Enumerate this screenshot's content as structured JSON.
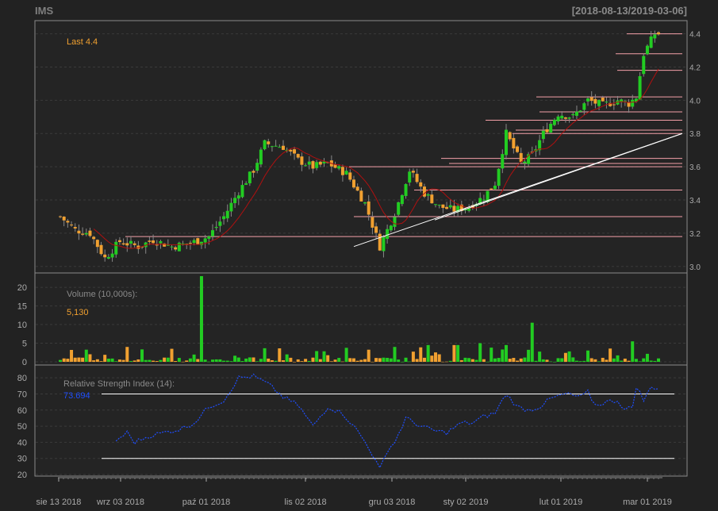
{
  "header": {
    "symbol": "IMS",
    "date_range": "[2018-08-13/2019-03-06]"
  },
  "colors": {
    "background": "#222222",
    "frame": "#8a8a8a",
    "grid": "#3a3a3a",
    "up": "#22cc22",
    "down": "#f0a030",
    "sma": "#b01010",
    "resistance": "#f4a0a8",
    "trendline": "#ffffff",
    "rsi": "#1f4fff",
    "text": "#aaaaaa"
  },
  "price_panel": {
    "last_label": "Last 4.4",
    "y_ticks": [
      "3.0",
      "3.2",
      "3.4",
      "3.6",
      "3.8",
      "4.0",
      "4.2",
      "4.4"
    ]
  },
  "volume_panel": {
    "label": "Volume (10,000s):",
    "last_value": "5,130",
    "y_ticks": [
      "0",
      "5",
      "10",
      "15",
      "20"
    ]
  },
  "rsi_panel": {
    "label": "Relative Strength Index (14):",
    "last_value": "73.694",
    "y_ticks": [
      "20",
      "30",
      "40",
      "50",
      "60",
      "70",
      "80"
    ]
  },
  "x_axis": {
    "labels": [
      "sie 13 2018",
      "wrz 03 2018",
      "paź 01 2018",
      "lis 02 2018",
      "gru 03 2018",
      "sty 02 2019",
      "lut 01 2019",
      "mar 01 2019"
    ]
  },
  "chart_data": [
    {
      "type": "candlestick",
      "panel": "price",
      "ylim": [
        2.98,
        4.46
      ],
      "resistance_levels": [
        4.4,
        4.28,
        4.18,
        4.02,
        3.93,
        3.88,
        3.82,
        3.8,
        3.65,
        3.62,
        3.6,
        3.46,
        3.3,
        3.18
      ],
      "trendlines": [
        {
          "from": [
            0,
            3.12
          ],
          "to": [
            1,
            3.8
          ]
        },
        {
          "from": [
            0.25,
            3.28
          ],
          "to": [
            1,
            3.8
          ]
        }
      ],
      "keypoints": [
        [
          0,
          3.3
        ],
        [
          4,
          3.22
        ],
        [
          8,
          3.2
        ],
        [
          12,
          3.05
        ],
        [
          16,
          3.15
        ],
        [
          21,
          3.12
        ],
        [
          25,
          3.16
        ],
        [
          30,
          3.12
        ],
        [
          35,
          3.14
        ],
        [
          40,
          3.18
        ],
        [
          44,
          3.3
        ],
        [
          48,
          3.45
        ],
        [
          52,
          3.58
        ],
        [
          55,
          3.74
        ],
        [
          60,
          3.72
        ],
        [
          64,
          3.64
        ],
        [
          68,
          3.6
        ],
        [
          72,
          3.62
        ],
        [
          77,
          3.56
        ],
        [
          82,
          3.38
        ],
        [
          86,
          3.12
        ],
        [
          90,
          3.32
        ],
        [
          94,
          3.58
        ],
        [
          98,
          3.44
        ],
        [
          102,
          3.36
        ],
        [
          106,
          3.34
        ],
        [
          110,
          3.36
        ],
        [
          114,
          3.42
        ],
        [
          117,
          3.5
        ],
        [
          120,
          3.8
        ],
        [
          124,
          3.62
        ],
        [
          127,
          3.67
        ],
        [
          130,
          3.8
        ],
        [
          134,
          3.92
        ],
        [
          138,
          3.9
        ],
        [
          142,
          4.0
        ],
        [
          146,
          3.97
        ],
        [
          150,
          4.0
        ],
        [
          153,
          3.98
        ],
        [
          155,
          4.02
        ],
        [
          157,
          4.28
        ],
        [
          160,
          4.4
        ]
      ]
    },
    {
      "type": "bar",
      "panel": "volume",
      "ylim": [
        0,
        23
      ],
      "spikes": [
        [
          38,
          23
        ],
        [
          127,
          10.5
        ],
        [
          106,
          4.5
        ],
        [
          107,
          4.5
        ],
        [
          99,
          4.5
        ],
        [
          113,
          5
        ],
        [
          120,
          4.5
        ],
        [
          18,
          4
        ],
        [
          90,
          4
        ],
        [
          154,
          5.5
        ]
      ]
    },
    {
      "type": "line",
      "panel": "rsi",
      "ylim": [
        20,
        85
      ],
      "reference_lines": [
        70,
        30
      ],
      "keypoints": [
        [
          15,
          41
        ],
        [
          18,
          46
        ],
        [
          20,
          40
        ],
        [
          24,
          44
        ],
        [
          28,
          46
        ],
        [
          32,
          48
        ],
        [
          36,
          52
        ],
        [
          40,
          62
        ],
        [
          44,
          66
        ],
        [
          48,
          80
        ],
        [
          52,
          81
        ],
        [
          56,
          76
        ],
        [
          60,
          68
        ],
        [
          64,
          63
        ],
        [
          68,
          50
        ],
        [
          72,
          62
        ],
        [
          76,
          58
        ],
        [
          80,
          47
        ],
        [
          83,
          37
        ],
        [
          86,
          23
        ],
        [
          88,
          35
        ],
        [
          90,
          40
        ],
        [
          93,
          55
        ],
        [
          97,
          50
        ],
        [
          101,
          47
        ],
        [
          104,
          46
        ],
        [
          108,
          52
        ],
        [
          111,
          52
        ],
        [
          114,
          56
        ],
        [
          117,
          58
        ],
        [
          120,
          70
        ],
        [
          123,
          62
        ],
        [
          126,
          60
        ],
        [
          129,
          62
        ],
        [
          132,
          67
        ],
        [
          136,
          70
        ],
        [
          140,
          68
        ],
        [
          142,
          71
        ],
        [
          144,
          63
        ],
        [
          147,
          65
        ],
        [
          150,
          66
        ],
        [
          152,
          60
        ],
        [
          154,
          62
        ],
        [
          155,
          75
        ],
        [
          157,
          66
        ],
        [
          159,
          74
        ],
        [
          161,
          74
        ]
      ]
    }
  ]
}
